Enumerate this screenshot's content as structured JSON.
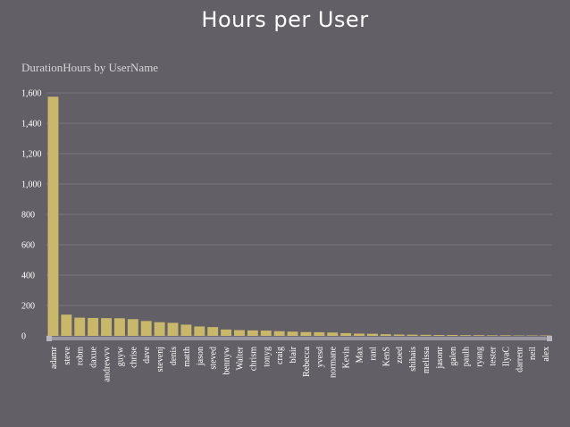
{
  "page": {
    "title": "Hours per User"
  },
  "colors": {
    "background": "#625f66",
    "bar": "#c9b86a",
    "grid": "#787580",
    "scrollbar": "#9a97a0",
    "text": "#ffffff"
  },
  "chart_data": {
    "type": "bar",
    "title": "DurationHours by UserName",
    "xlabel": "",
    "ylabel": "",
    "ylim": [
      0,
      1600
    ],
    "yticks": [
      0,
      200,
      400,
      600,
      800,
      1000,
      1200,
      1400,
      1600
    ],
    "ytick_labels": [
      "0",
      "200",
      "400",
      "600",
      "800",
      "1,000",
      "1,200",
      "1,400",
      "1,600"
    ],
    "grid": true,
    "categories": [
      "adamr",
      "steve",
      "robm",
      "daxue",
      "andrewvv",
      "guyw",
      "chrise",
      "dave",
      "stevenj",
      "denis",
      "matth",
      "jason",
      "steved",
      "bennyw",
      "Walter",
      "chrism",
      "tonyg",
      "craig",
      "blair",
      "Rebecca",
      "yvesd",
      "normane",
      "Kevin",
      "Max",
      "ranl",
      "KenS",
      "zoed",
      "shihais",
      "melissa",
      "jasonr",
      "galen",
      "paulh",
      "ryang",
      "tester",
      "IlyaC",
      "darrenr",
      "neil",
      "alex"
    ],
    "values": [
      1575,
      140,
      120,
      118,
      117,
      116,
      110,
      98,
      90,
      86,
      74,
      62,
      58,
      42,
      38,
      36,
      35,
      31,
      28,
      25,
      24,
      22,
      18,
      15,
      14,
      11,
      9,
      8,
      7,
      6,
      6,
      5,
      5,
      4,
      4,
      3,
      3,
      3
    ]
  }
}
